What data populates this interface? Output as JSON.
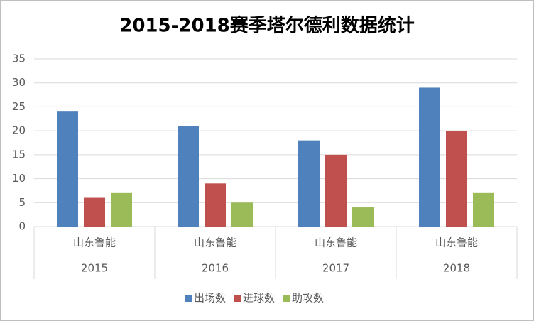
{
  "chart_data": {
    "type": "bar",
    "title": "2015-2018赛季塔尔德利数据统计",
    "categories": [
      "2015",
      "2016",
      "2017",
      "2018"
    ],
    "subcategories": [
      "山东鲁能",
      "山东鲁能",
      "山东鲁能",
      "山东鲁能"
    ],
    "series": [
      {
        "name": "出场数",
        "color": "#4f81bd",
        "values": [
          24,
          21,
          18,
          29
        ]
      },
      {
        "name": "进球数",
        "color": "#c0504d",
        "values": [
          6,
          9,
          15,
          20
        ]
      },
      {
        "name": "助攻数",
        "color": "#9bbb59",
        "values": [
          7,
          5,
          4,
          7
        ]
      }
    ],
    "ylim": [
      0,
      35
    ],
    "yticks": [
      0,
      5,
      10,
      15,
      20,
      25,
      30,
      35
    ],
    "grid": true,
    "legend": "bottom"
  }
}
